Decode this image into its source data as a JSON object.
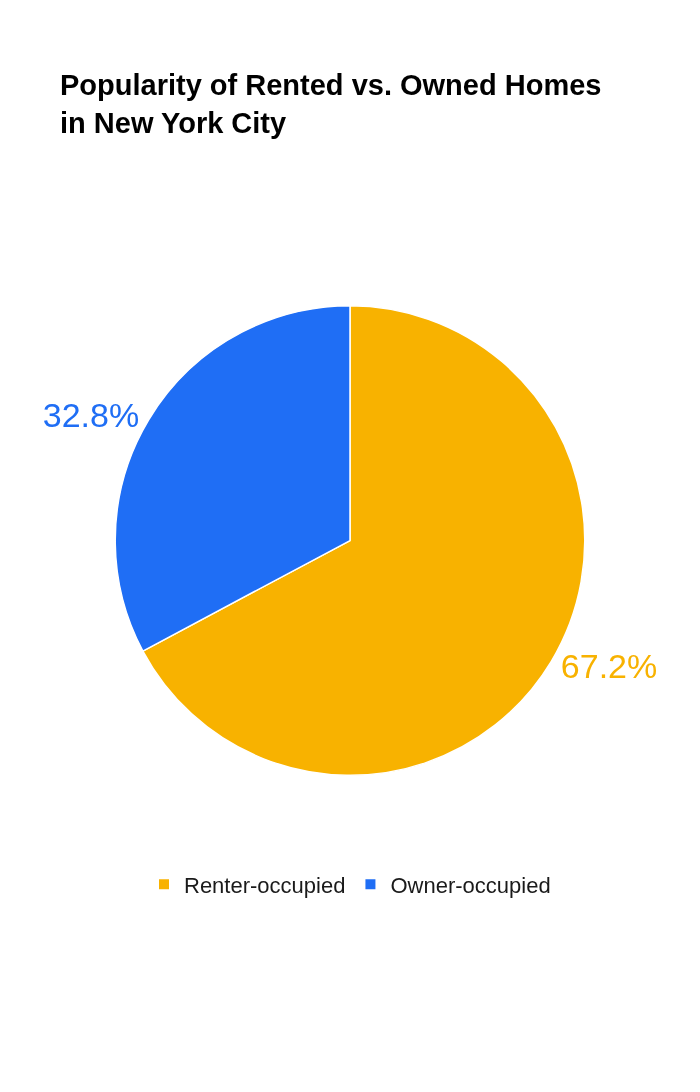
{
  "chart_data": {
    "type": "pie",
    "title": "Popularity of Rented vs. Owned Homes in New York City",
    "categories": [
      "Renter-occupied",
      "Owner-occupied"
    ],
    "values": [
      67.2,
      32.8
    ],
    "value_labels": [
      "67.2%",
      "32.8%"
    ],
    "colors": [
      "#f8b200",
      "#1f6ef5"
    ],
    "legend": "bottom"
  }
}
